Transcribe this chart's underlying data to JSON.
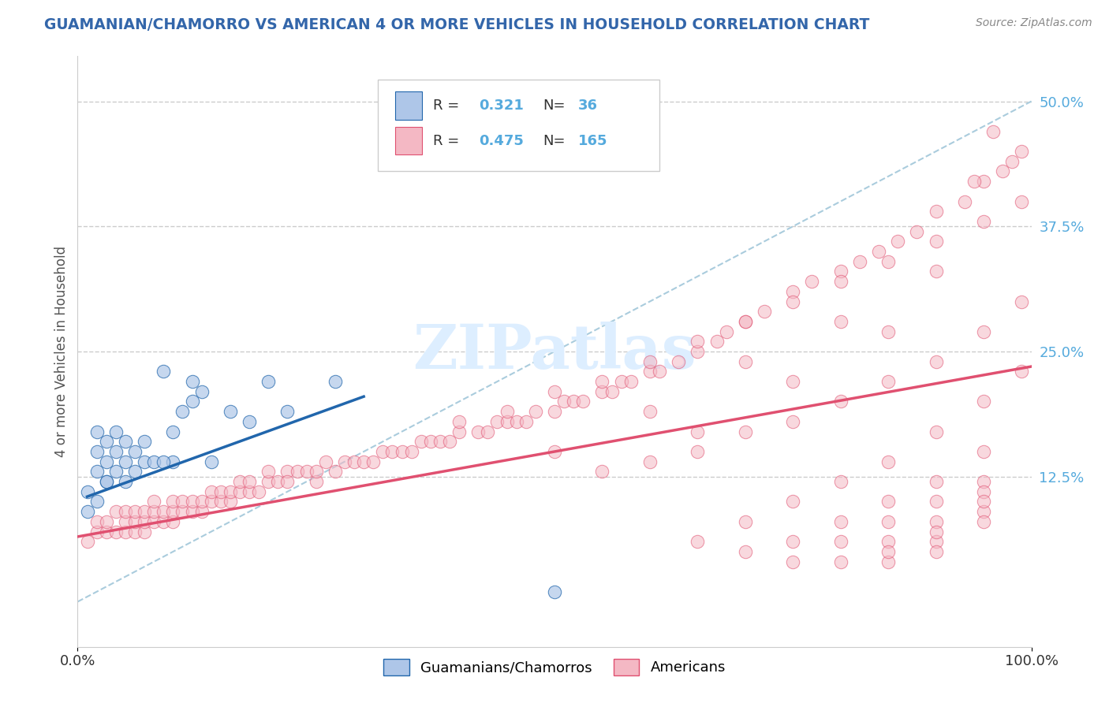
{
  "title": "GUAMANIAN/CHAMORRO VS AMERICAN 4 OR MORE VEHICLES IN HOUSEHOLD CORRELATION CHART",
  "source": "Source: ZipAtlas.com",
  "ylabel": "4 or more Vehicles in Household",
  "legend_label1": "Guamanians/Chamorros",
  "legend_label2": "Americans",
  "R1": 0.321,
  "N1": 36,
  "R2": 0.475,
  "N2": 165,
  "color1": "#aec6e8",
  "color2": "#f4b8c4",
  "line_color1": "#2166ac",
  "line_color2": "#e05070",
  "ref_line_color": "#aaccdd",
  "grid_color": "#cccccc",
  "title_color": "#3366aa",
  "source_color": "#888888",
  "ytick_color": "#55aadd",
  "watermark_color": "#ddeeff",
  "xlim": [
    0.0,
    1.0
  ],
  "ylim": [
    -0.045,
    0.545
  ],
  "ytick_vals": [
    0.0,
    0.125,
    0.25,
    0.375,
    0.5
  ],
  "guam_x": [
    0.01,
    0.01,
    0.02,
    0.02,
    0.02,
    0.02,
    0.03,
    0.03,
    0.03,
    0.03,
    0.04,
    0.04,
    0.04,
    0.05,
    0.05,
    0.05,
    0.06,
    0.06,
    0.07,
    0.07,
    0.08,
    0.09,
    0.1,
    0.1,
    0.11,
    0.12,
    0.13,
    0.14,
    0.16,
    0.18,
    0.2,
    0.22,
    0.09,
    0.12,
    0.27,
    0.5
  ],
  "guam_y": [
    0.09,
    0.11,
    0.13,
    0.15,
    0.17,
    0.1,
    0.12,
    0.14,
    0.16,
    0.12,
    0.13,
    0.15,
    0.17,
    0.12,
    0.14,
    0.16,
    0.13,
    0.15,
    0.14,
    0.16,
    0.14,
    0.23,
    0.14,
    0.17,
    0.19,
    0.2,
    0.21,
    0.14,
    0.19,
    0.18,
    0.22,
    0.19,
    0.14,
    0.22,
    0.22,
    0.01
  ],
  "amer_x": [
    0.01,
    0.02,
    0.02,
    0.03,
    0.03,
    0.04,
    0.04,
    0.05,
    0.05,
    0.05,
    0.06,
    0.06,
    0.06,
    0.07,
    0.07,
    0.07,
    0.08,
    0.08,
    0.08,
    0.09,
    0.09,
    0.1,
    0.1,
    0.1,
    0.11,
    0.11,
    0.12,
    0.12,
    0.13,
    0.13,
    0.14,
    0.14,
    0.15,
    0.15,
    0.16,
    0.16,
    0.17,
    0.17,
    0.18,
    0.18,
    0.19,
    0.2,
    0.2,
    0.21,
    0.22,
    0.22,
    0.23,
    0.24,
    0.25,
    0.25,
    0.26,
    0.27,
    0.28,
    0.29,
    0.3,
    0.31,
    0.32,
    0.33,
    0.34,
    0.35,
    0.36,
    0.37,
    0.38,
    0.39,
    0.4,
    0.42,
    0.43,
    0.44,
    0.45,
    0.46,
    0.47,
    0.48,
    0.5,
    0.51,
    0.52,
    0.53,
    0.55,
    0.56,
    0.57,
    0.58,
    0.6,
    0.61,
    0.63,
    0.65,
    0.67,
    0.68,
    0.7,
    0.72,
    0.75,
    0.77,
    0.8,
    0.82,
    0.84,
    0.86,
    0.88,
    0.9,
    0.93,
    0.95,
    0.97,
    0.99,
    0.4,
    0.45,
    0.5,
    0.55,
    0.6,
    0.65,
    0.7,
    0.75,
    0.8,
    0.85,
    0.9,
    0.95,
    0.99,
    0.6,
    0.65,
    0.7,
    0.75,
    0.8,
    0.85,
    0.9,
    0.95,
    0.99,
    0.65,
    0.7,
    0.75,
    0.8,
    0.85,
    0.9,
    0.95,
    0.99,
    0.7,
    0.75,
    0.8,
    0.85,
    0.9,
    0.95,
    0.75,
    0.8,
    0.85,
    0.9,
    0.95,
    0.8,
    0.85,
    0.9,
    0.95,
    0.85,
    0.9,
    0.95,
    0.85,
    0.9,
    0.95,
    0.9,
    0.95,
    0.94,
    0.96,
    0.98,
    0.5,
    0.6,
    0.7,
    0.8,
    0.9,
    0.55,
    0.65,
    0.75,
    0.85
  ],
  "amer_y": [
    0.06,
    0.07,
    0.08,
    0.07,
    0.08,
    0.07,
    0.09,
    0.07,
    0.08,
    0.09,
    0.07,
    0.08,
    0.09,
    0.07,
    0.08,
    0.09,
    0.08,
    0.09,
    0.1,
    0.08,
    0.09,
    0.08,
    0.09,
    0.1,
    0.09,
    0.1,
    0.09,
    0.1,
    0.09,
    0.1,
    0.1,
    0.11,
    0.1,
    0.11,
    0.1,
    0.11,
    0.11,
    0.12,
    0.11,
    0.12,
    0.11,
    0.12,
    0.13,
    0.12,
    0.13,
    0.12,
    0.13,
    0.13,
    0.12,
    0.13,
    0.14,
    0.13,
    0.14,
    0.14,
    0.14,
    0.14,
    0.15,
    0.15,
    0.15,
    0.15,
    0.16,
    0.16,
    0.16,
    0.16,
    0.17,
    0.17,
    0.17,
    0.18,
    0.18,
    0.18,
    0.18,
    0.19,
    0.19,
    0.2,
    0.2,
    0.2,
    0.21,
    0.21,
    0.22,
    0.22,
    0.23,
    0.23,
    0.24,
    0.25,
    0.26,
    0.27,
    0.28,
    0.29,
    0.31,
    0.32,
    0.33,
    0.34,
    0.35,
    0.36,
    0.37,
    0.39,
    0.4,
    0.42,
    0.43,
    0.45,
    0.18,
    0.19,
    0.21,
    0.22,
    0.24,
    0.26,
    0.28,
    0.3,
    0.32,
    0.34,
    0.36,
    0.38,
    0.4,
    0.14,
    0.15,
    0.17,
    0.18,
    0.2,
    0.22,
    0.24,
    0.27,
    0.3,
    0.06,
    0.08,
    0.1,
    0.12,
    0.14,
    0.17,
    0.2,
    0.23,
    0.05,
    0.06,
    0.08,
    0.1,
    0.12,
    0.15,
    0.04,
    0.06,
    0.08,
    0.1,
    0.12,
    0.04,
    0.06,
    0.08,
    0.11,
    0.04,
    0.06,
    0.09,
    0.05,
    0.07,
    0.1,
    0.05,
    0.08,
    0.42,
    0.47,
    0.44,
    0.15,
    0.19,
    0.24,
    0.28,
    0.33,
    0.13,
    0.17,
    0.22,
    0.27
  ],
  "guam_line_x": [
    0.01,
    0.3
  ],
  "guam_line_y": [
    0.105,
    0.205
  ],
  "amer_line_x": [
    0.0,
    1.0
  ],
  "amer_line_y": [
    0.065,
    0.235
  ],
  "ref_line_x": [
    0.0,
    1.0
  ],
  "ref_line_y": [
    0.0,
    0.5
  ]
}
